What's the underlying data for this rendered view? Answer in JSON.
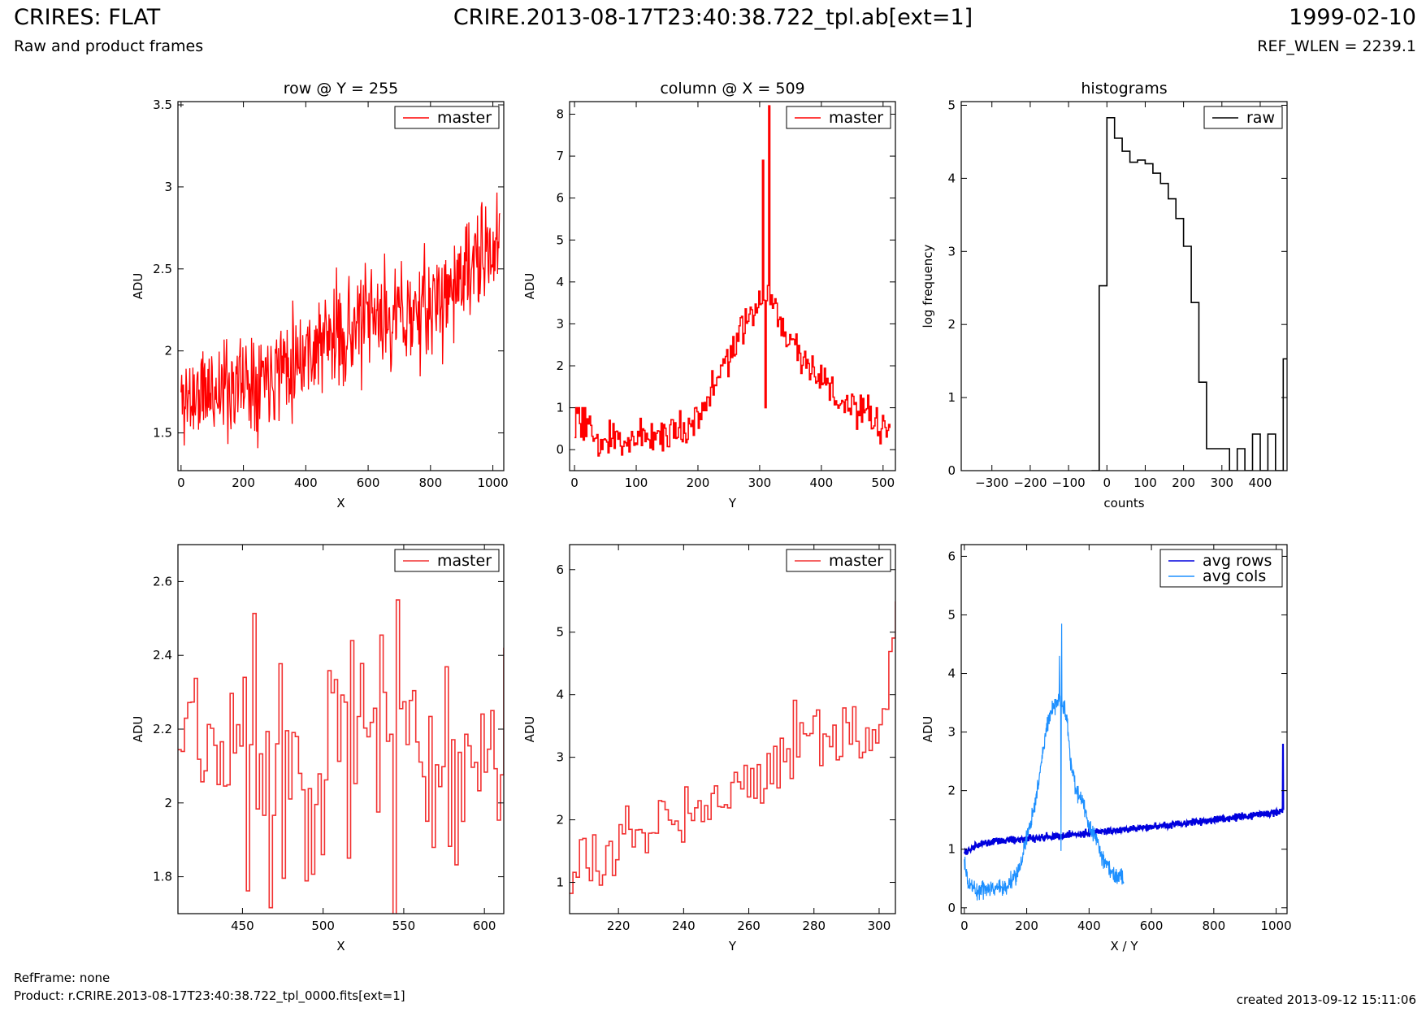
{
  "header": {
    "title": "CRIRES: FLAT",
    "subtitle": "Raw and product frames",
    "center": "CRIRE.2013-08-17T23:40:38.722_tpl.ab[ext=1]",
    "date": "1999-02-10",
    "ref_wlen": "REF_WLEN = 2239.1"
  },
  "footer": {
    "refframe": "RefFrame: none",
    "product": "Product: r.CRIRE.2013-08-17T23:40:38.722_tpl_0000.fits[ext=1]",
    "created": "created 2013-09-12 15:11:06"
  },
  "colors": {
    "red": "#ff0000",
    "red_light": "#f23030",
    "black": "#000000",
    "blue": "#0000dd",
    "light_blue": "#1e90ff"
  },
  "chart_data": [
    {
      "type": "line",
      "title": "row @ Y = 255",
      "xlabel": "X",
      "ylabel": "ADU",
      "xlim": [
        -10,
        1035
      ],
      "ylim": [
        1.27,
        3.52
      ],
      "xticks": [
        0,
        200,
        400,
        600,
        800,
        1000
      ],
      "yticks": [
        1.5,
        2.0,
        2.5,
        3.0,
        3.5
      ],
      "grid": false,
      "legend": "top-right",
      "series": [
        {
          "name": "master",
          "color": "#ff0000",
          "generated": "noise",
          "x": [
            0,
            200,
            400,
            600,
            800,
            900,
            1000,
            1023
          ],
          "y": [
            1.7,
            1.82,
            2.0,
            2.18,
            2.25,
            2.45,
            2.6,
            2.68
          ],
          "noise": 0.16,
          "count": 512,
          "step": false,
          "seed": 11
        }
      ]
    },
    {
      "type": "line",
      "title": "column @ X = 509",
      "xlabel": "Y",
      "ylabel": "ADU",
      "xlim": [
        -8,
        520
      ],
      "ylim": [
        -0.5,
        8.3
      ],
      "xticks": [
        0,
        100,
        200,
        300,
        400,
        500
      ],
      "yticks": [
        0,
        1,
        2,
        3,
        4,
        5,
        6,
        7,
        8
      ],
      "grid": false,
      "legend": "top-right",
      "series": [
        {
          "name": "master",
          "color": "#ff0000",
          "generated": "noise",
          "x": [
            0,
            15,
            25,
            60,
            100,
            150,
            180,
            200,
            220,
            240,
            260,
            280,
            295,
            305,
            315,
            325,
            340,
            360,
            380,
            400,
            420,
            440,
            460,
            480,
            500,
            511
          ],
          "y": [
            0.6,
            0.3,
            0.2,
            0.2,
            0.3,
            0.4,
            0.5,
            0.9,
            1.3,
            2.0,
            2.5,
            3.0,
            3.5,
            3.6,
            3.6,
            3.5,
            2.8,
            2.4,
            2.0,
            1.7,
            1.3,
            1.0,
            0.9,
            0.7,
            0.5,
            0.6
          ],
          "noise": 0.22,
          "count": 256,
          "step": true,
          "seed": 23,
          "spikes": [
            {
              "x": 305,
              "y": 6.9
            },
            {
              "x": 314,
              "y": 8.2
            },
            {
              "x": 309,
              "y": 1.0
            },
            {
              "x": 2,
              "y": 1.0
            },
            {
              "x": 6,
              "y": 1.0
            },
            {
              "x": 12,
              "y": 1.0
            },
            {
              "x": 16,
              "y": 1.0
            },
            {
              "x": 24,
              "y": 0.8
            },
            {
              "x": 56,
              "y": 0.7
            }
          ]
        }
      ]
    },
    {
      "type": "line",
      "title": "histograms",
      "xlabel": "counts",
      "ylabel": "log frequency",
      "xlim": [
        -380,
        470
      ],
      "ylim": [
        0,
        5.05
      ],
      "xticks": [
        -300,
        -200,
        -100,
        0,
        100,
        200,
        300,
        400
      ],
      "yticks": [
        0,
        1,
        2,
        3,
        4,
        5
      ],
      "grid": false,
      "legend": "top-right",
      "series": [
        {
          "name": "raw",
          "color": "#000000",
          "step": true,
          "x": [
            -40,
            -20,
            0,
            20,
            40,
            60,
            80,
            100,
            120,
            140,
            160,
            180,
            200,
            220,
            240,
            260,
            280,
            300,
            320,
            340,
            360,
            380,
            400,
            420,
            440,
            460,
            470
          ],
          "y": [
            0,
            2.53,
            4.83,
            4.55,
            4.37,
            4.22,
            4.25,
            4.2,
            4.07,
            3.93,
            3.72,
            3.45,
            3.07,
            2.3,
            1.21,
            0.3,
            0.3,
            0.3,
            0,
            0.3,
            0,
            0.5,
            0,
            0.5,
            0,
            1.53,
            1.53
          ]
        }
      ]
    },
    {
      "type": "line",
      "xlabel": "X",
      "ylabel": "ADU",
      "xlim": [
        410,
        612
      ],
      "ylim": [
        1.7,
        2.7
      ],
      "xticks": [
        450,
        500,
        550,
        600
      ],
      "yticks": [
        1.8,
        2.0,
        2.2,
        2.4,
        2.6
      ],
      "grid": false,
      "legend": "top-right",
      "series": [
        {
          "name": "master",
          "color": "#f23030",
          "generated": "noise",
          "x": [
            410,
            612
          ],
          "y": [
            2.13,
            2.17
          ],
          "noise": 0.18,
          "count": 101,
          "step": true,
          "seed": 37
        }
      ]
    },
    {
      "type": "line",
      "xlabel": "Y",
      "ylabel": "ADU",
      "xlim": [
        205,
        305
      ],
      "ylim": [
        0.5,
        6.4
      ],
      "xticks": [
        220,
        240,
        260,
        280,
        300
      ],
      "yticks": [
        1,
        2,
        3,
        4,
        5,
        6
      ],
      "grid": false,
      "legend": "top-right",
      "series": [
        {
          "name": "master",
          "color": "#f23030",
          "generated": "noise",
          "x": [
            205,
            215,
            225,
            235,
            245,
            255,
            265,
            275,
            285,
            295,
            301,
            303,
            305
          ],
          "y": [
            1.1,
            1.3,
            1.8,
            2.1,
            2.3,
            2.5,
            2.7,
            3.5,
            3.4,
            3.3,
            3.4,
            4.5,
            5.1
          ],
          "noise": 0.25,
          "count": 100,
          "step": true,
          "seed": 53
        }
      ]
    },
    {
      "type": "line",
      "xlabel": "X / Y",
      "ylabel": "ADU",
      "xlim": [
        -10,
        1035
      ],
      "ylim": [
        -0.1,
        6.2
      ],
      "xticks": [
        0,
        200,
        400,
        600,
        800,
        1000
      ],
      "yticks": [
        0,
        1,
        2,
        3,
        4,
        5,
        6
      ],
      "grid": false,
      "legend": "top-right",
      "series": [
        {
          "name": "avg rows",
          "color": "#0000dd",
          "generated": "noise",
          "x": [
            0,
            50,
            100,
            200,
            400,
            600,
            800,
            1000,
            1023
          ],
          "y": [
            0.95,
            1.08,
            1.13,
            1.18,
            1.28,
            1.38,
            1.5,
            1.62,
            1.67
          ],
          "noise": 0.03,
          "count": 1024,
          "width": 2.2,
          "step": false,
          "seed": 71,
          "spikes": [
            {
              "x": 1022,
              "y": 2.8
            }
          ]
        },
        {
          "name": "avg cols",
          "color": "#1e90ff",
          "generated": "noise",
          "x": [
            0,
            10,
            20,
            40,
            60,
            80,
            100,
            120,
            140,
            160,
            180,
            200,
            220,
            240,
            260,
            280,
            300,
            305,
            315,
            320,
            330,
            340,
            360,
            380,
            400,
            420,
            440,
            460,
            480,
            500,
            511
          ],
          "y": [
            0.75,
            0.5,
            0.38,
            0.3,
            0.32,
            0.35,
            0.33,
            0.36,
            0.4,
            0.5,
            0.75,
            1.2,
            1.6,
            2.2,
            3.0,
            3.4,
            3.55,
            3.5,
            3.5,
            3.45,
            3.2,
            2.5,
            2.0,
            1.8,
            1.4,
            1.2,
            0.9,
            0.7,
            0.55,
            0.5,
            0.52
          ],
          "noise": 0.08,
          "count": 512,
          "width": 1.2,
          "step": false,
          "seed": 89,
          "spikes": [
            {
              "x": 305,
              "y": 4.3
            },
            {
              "x": 312,
              "y": 4.85
            },
            {
              "x": 310,
              "y": 0.97
            }
          ]
        }
      ]
    }
  ]
}
